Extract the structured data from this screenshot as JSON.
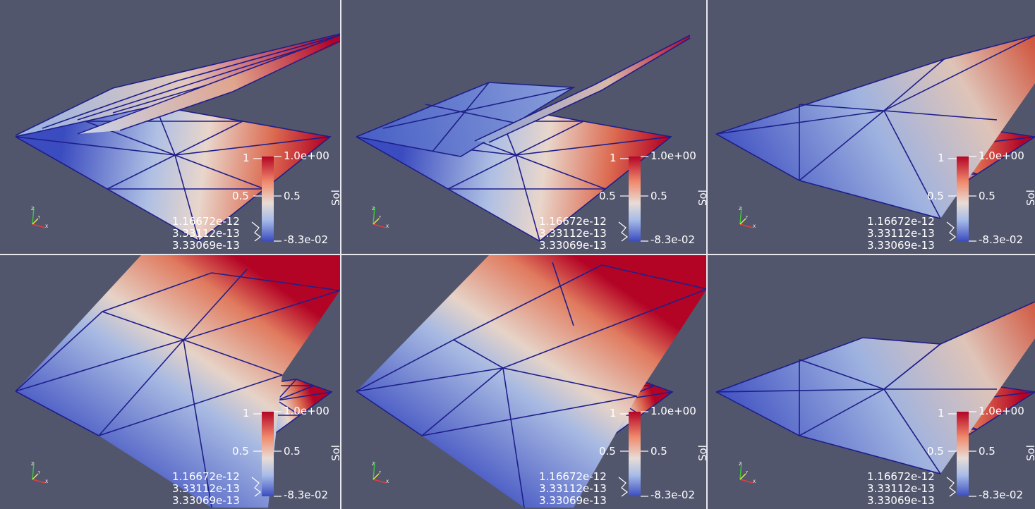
{
  "background_color": "#52566d",
  "separator_color": "#e8e8ee",
  "mesh_edge_color": "#1f1f8a",
  "colormap": {
    "low": "#3b4cc0",
    "mid": "#dddddd",
    "high": "#b40426"
  },
  "axes_icon": "xyz-orientation-axes-icon",
  "legend": {
    "variable": "Sol",
    "max_label": "1.0e+00",
    "mid_label": "0.5",
    "min_label": "-8.3e-02",
    "tick_1": "1",
    "tick_05": "0.5",
    "annotations": [
      "1.16672e-12",
      "3.33112e-13",
      "3.33069e-13"
    ]
  },
  "views": [
    {
      "row": 1,
      "col": 1,
      "variant": "blade-behind"
    },
    {
      "row": 1,
      "col": 2,
      "variant": "thin-blade"
    },
    {
      "row": 1,
      "col": 3,
      "variant": "tilted-sheet"
    },
    {
      "row": 2,
      "col": 1,
      "variant": "raised-sheet"
    },
    {
      "row": 2,
      "col": 2,
      "variant": "raised-sheet-2"
    },
    {
      "row": 2,
      "col": 3,
      "variant": "tilted-sheet-2"
    }
  ]
}
